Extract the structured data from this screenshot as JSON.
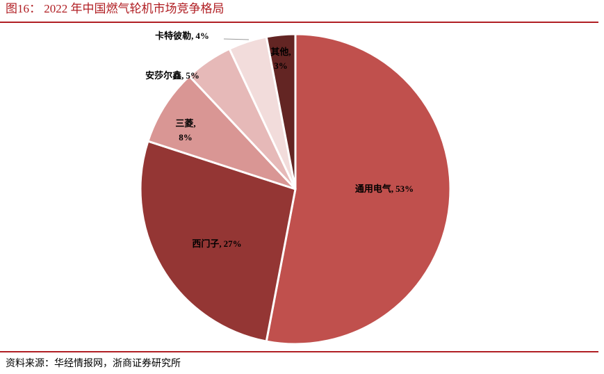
{
  "chart_data": {
    "type": "pie",
    "title": "图16： 2022 年中国燃气轮机市场竞争格局",
    "source": "资料来源：华经情报网，浙商证券研究所",
    "categories": [
      "通用电气,",
      "西门子,",
      "三菱,",
      "安莎尔鑫,",
      "卡特彼勒,",
      "其他,"
    ],
    "values": [
      53,
      27,
      8,
      5,
      4,
      3
    ],
    "value_labels": [
      "53%",
      "27%",
      "8%",
      "5%",
      "4%",
      "3%"
    ],
    "colors": [
      "#c0504d",
      "#943634",
      "#d99694",
      "#e6b9b8",
      "#f2dcdb",
      "#632523"
    ]
  }
}
